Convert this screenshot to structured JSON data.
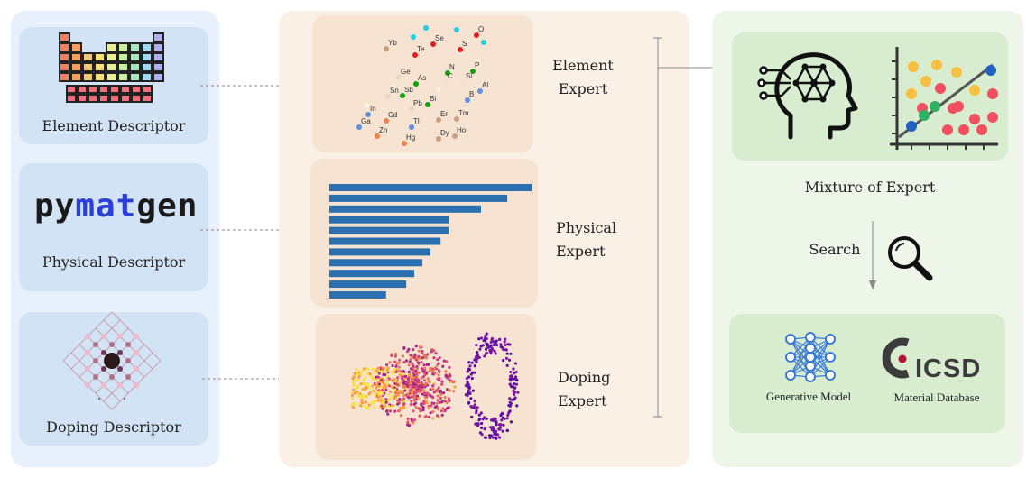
{
  "descriptors": {
    "element_label": "Element Descriptor",
    "physical_label": "Physical Descriptor",
    "doping_label": "Doping Descriptor",
    "pymatgen_logo": [
      "py",
      "mat",
      "gen"
    ]
  },
  "experts": {
    "element_label": [
      "Element",
      "Expert"
    ],
    "physical_label": [
      "Physical",
      "Expert"
    ],
    "doping_label": [
      "Doping",
      "Expert"
    ],
    "element_symbols": [
      "Yb",
      "Te",
      "Se",
      "S",
      "O",
      "Ge",
      "N",
      "P",
      "As",
      "C",
      "Si",
      "Al",
      "Sn",
      "Sb",
      "B",
      "Pb",
      "Bi",
      "In",
      "Er",
      "Tm",
      "Cd",
      "Tl",
      "Ga",
      "Zn",
      "Dy",
      "Ho",
      "Hg"
    ],
    "bar_values": [
      10,
      8.8,
      7.5,
      5.9,
      5.9,
      5.5,
      5.0,
      4.6,
      4.2,
      3.8,
      2.8
    ]
  },
  "right": {
    "moe_label": "Mixture of Expert",
    "search_label": "Search",
    "generative_label": "Generative Model",
    "database_label": "Material Database",
    "icsd_text": "ICSD"
  },
  "colors": {
    "left_panel": "#e8f0fb",
    "left_card": "#d3e3f6",
    "mid_panel": "#faf0e6",
    "mid_card": "#f6e3d1",
    "right_panel": "#eef5e9",
    "right_card": "#d8ecd0",
    "bar_color": "#2a6faf",
    "brain_icon_color": "#111111"
  }
}
